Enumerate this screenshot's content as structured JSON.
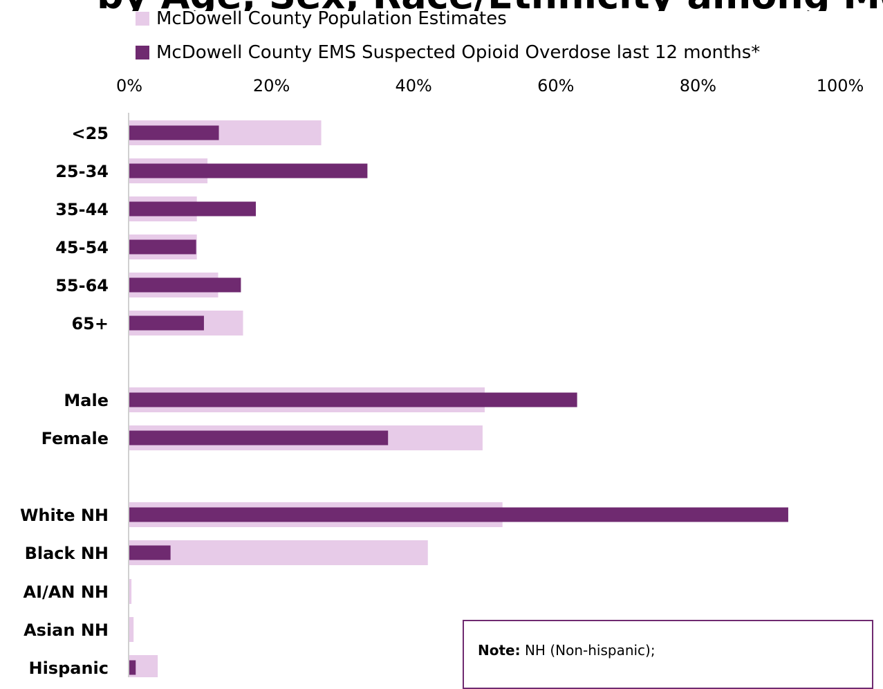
{
  "chart_data": {
    "type": "bar",
    "orientation": "horizontal",
    "title": "",
    "categories": [
      "<25",
      "25-34",
      "35-44",
      "45-54",
      "55-64",
      "65+",
      "Male",
      "Female",
      "White NH",
      "Black NH",
      "AI/AN NH",
      "Asian NH",
      "Hispanic"
    ],
    "series": [
      {
        "name": "McDowell County Population Estimates",
        "color": "#e7cbe8",
        "values": [
          27,
          11,
          9.5,
          9.5,
          12.5,
          16,
          50,
          49.7,
          52.5,
          42,
          0.3,
          0.6,
          4
        ]
      },
      {
        "name": "McDowell County EMS Suspected Opioid Overdose last 12 months*",
        "color": "#6f2a70",
        "values": [
          12.6,
          33.5,
          17.8,
          9.4,
          15.7,
          10.5,
          63,
          36.4,
          92.7,
          5.8,
          0,
          0,
          0.9
        ]
      }
    ],
    "x_axis": {
      "range": [
        0,
        100
      ],
      "ticks": [
        "0%",
        "20%",
        "40%",
        "60%",
        "80%",
        "100%"
      ],
      "position": "top"
    },
    "legend": {
      "position": "top"
    }
  },
  "note": {
    "bold": "Note:",
    "text": " NH (Non-hispanic);"
  }
}
